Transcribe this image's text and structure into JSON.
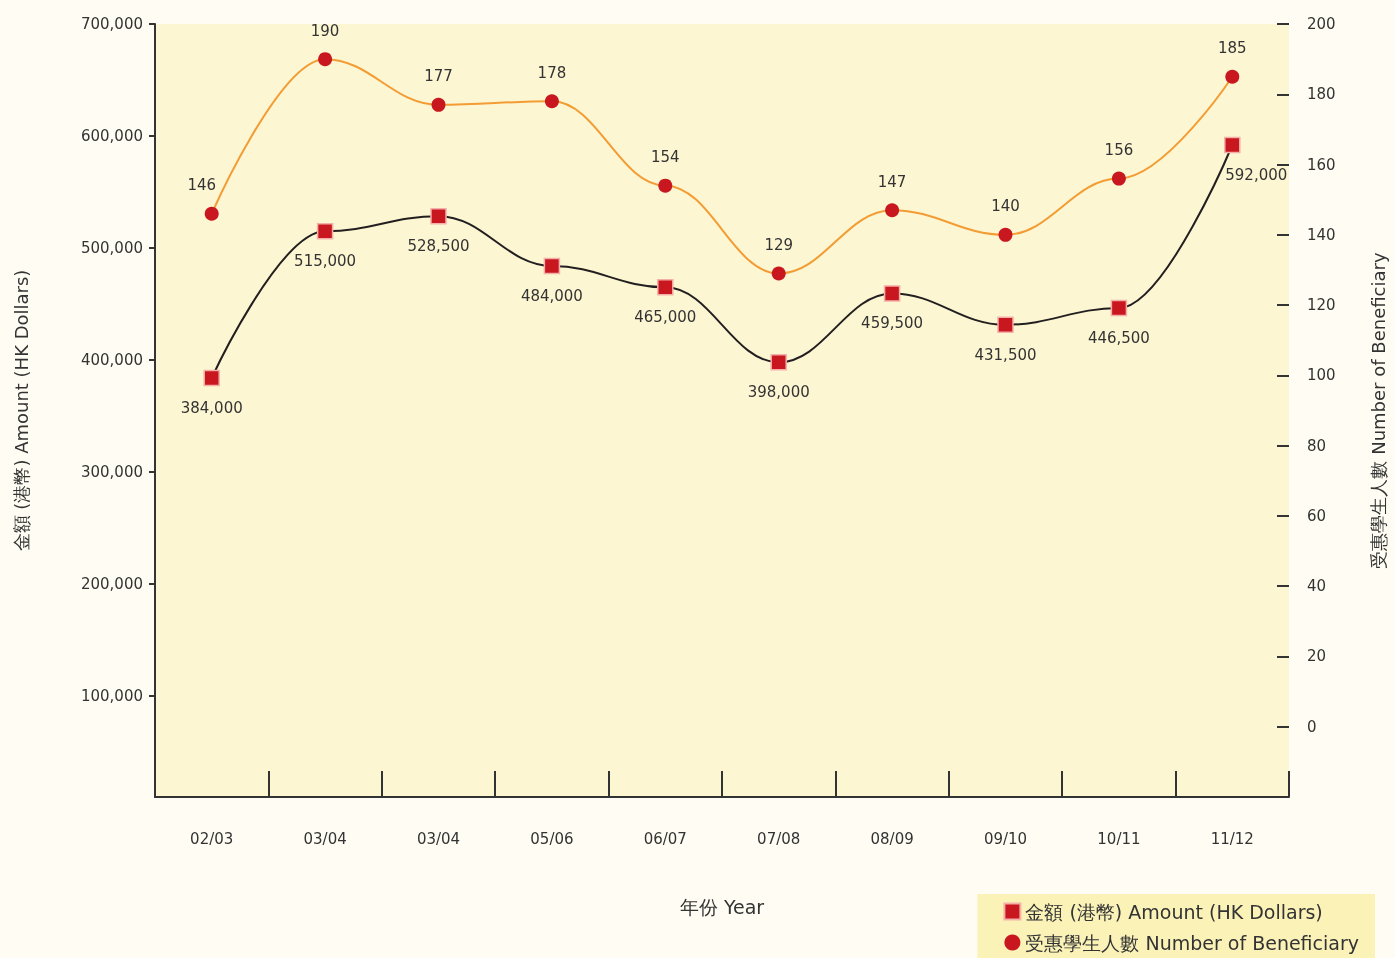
{
  "chart_data": {
    "type": "line",
    "xlabel": "年份 Year",
    "ylabel": "金額 (港幣) Amount (HK Dollars)",
    "y2label": "受惠學生人數 Number of Beneficiary",
    "categories": [
      "02/03",
      "03/04",
      "03/04",
      "05/06",
      "06/07",
      "07/08",
      "08/09",
      "09/10",
      "10/11",
      "11/12"
    ],
    "series": [
      {
        "name": "金額 (港幣) Amount (HK Dollars)",
        "color": "#231f20",
        "marker": "square",
        "values": [
          384000,
          515000,
          528500,
          484000,
          465000,
          398000,
          459500,
          431500,
          446500,
          592000
        ],
        "value_labels": [
          "384,000",
          "515,000",
          "528,500",
          "484,000",
          "465,000",
          "398,000",
          "459,500",
          "431,500",
          "446,500",
          "592,000"
        ]
      },
      {
        "name": "受惠學生人數 Number of Beneficiary",
        "color": "#f39c34",
        "marker": "circle",
        "axis": "y2",
        "values": [
          146,
          190,
          177,
          178,
          154,
          129,
          147,
          140,
          156,
          185
        ],
        "value_labels": [
          "146",
          "190",
          "177",
          "178",
          "154",
          "129",
          "147",
          "140",
          "156",
          "185"
        ]
      }
    ],
    "ylim": [
      10000,
      700000
    ],
    "yticks": [
      {
        "value": 100000,
        "label": "100,000"
      },
      {
        "value": 200000,
        "label": "200,000"
      },
      {
        "value": 300000,
        "label": "300,000"
      },
      {
        "value": 400000,
        "label": "400,000"
      },
      {
        "value": 500000,
        "label": "500,000"
      },
      {
        "value": 600000,
        "label": "600,000"
      },
      {
        "value": 700000,
        "label": "700,000"
      }
    ],
    "y2lim": [
      -20,
      200
    ],
    "y2ticks": [
      0,
      20,
      40,
      60,
      80,
      100,
      120,
      140,
      160,
      180,
      200
    ],
    "legend": "bottom right"
  }
}
